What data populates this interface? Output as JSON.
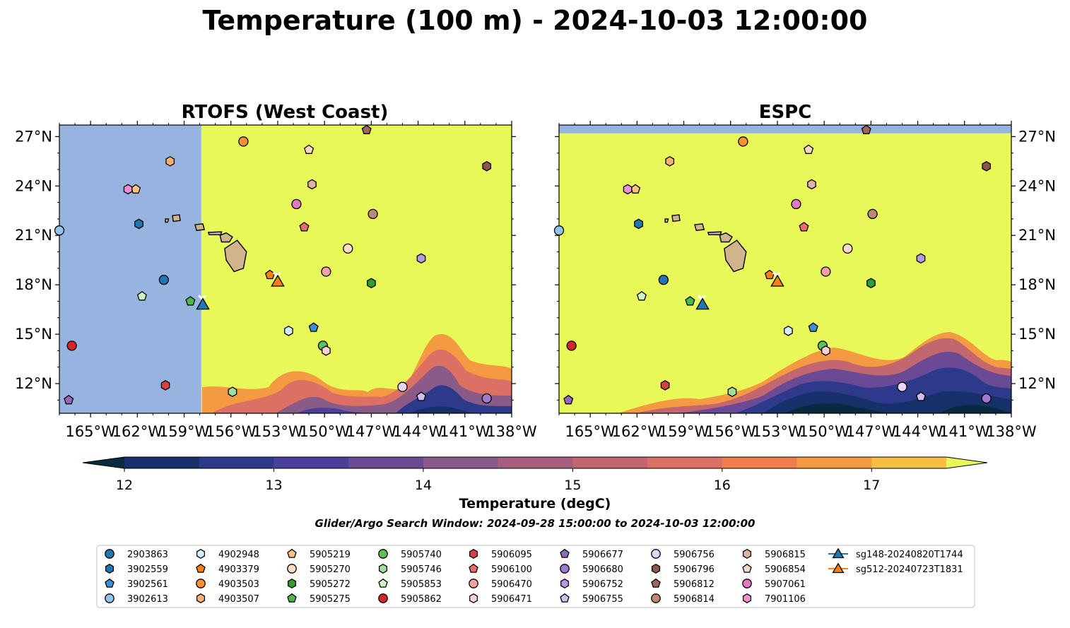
{
  "title": "Temperature (100 m) - 2024-10-03 12:00:00",
  "colorbar": {
    "label": "Temperature (degC)",
    "ticks": [
      "12",
      "13",
      "14",
      "15",
      "16",
      "17"
    ],
    "colors": [
      "#082a3e",
      "#16306a",
      "#2d3a8c",
      "#4a3f9a",
      "#6a4a94",
      "#8a5a88",
      "#a65e7c",
      "#c26670",
      "#dc7064",
      "#f07e4a",
      "#f49a42",
      "#f4bf42",
      "#e7f858"
    ]
  },
  "search_window": "Glider/Argo Search Window: 2024-09-28 15:00:00 to 2024-10-03 12:00:00",
  "chart_data": [
    {
      "type": "map",
      "title": "RTOFS (West Coast)",
      "xlim": [
        -167,
        -138
      ],
      "ylim": [
        10.2,
        27.7
      ],
      "x_ticks": [
        "165°W",
        "162°W",
        "159°W",
        "156°W",
        "153°W",
        "150°W",
        "147°W",
        "144°W",
        "141°W",
        "138°W"
      ],
      "y_ticks": [
        "27°N",
        "24°N",
        "21°N",
        "18°N",
        "15°N",
        "12°N"
      ],
      "no_data_west_of_lon": -157.9,
      "field_note": "domain outside model bounds shown in light blue; warm water (>17.5 degC) dominates"
    },
    {
      "type": "map",
      "title": "ESPC",
      "xlim": [
        -167,
        -138
      ],
      "ylim": [
        10.2,
        27.7
      ],
      "x_ticks": [
        "165°W",
        "162°W",
        "159°W",
        "156°W",
        "153°W",
        "150°W",
        "147°W",
        "144°W",
        "141°W",
        "138°W"
      ],
      "y_ticks": [
        "27°N",
        "24°N",
        "21°N",
        "18°N",
        "15°N",
        "12°N"
      ],
      "no_data_north_of_lat": 27.2,
      "field_note": "cooler water (12–15 degC) along the southern edge"
    }
  ],
  "platforms": [
    {
      "id": "2903863",
      "lon": -160.3,
      "lat": 18.3,
      "marker": "circle",
      "color": "#1f77b4"
    },
    {
      "id": "3902559",
      "lon": -161.9,
      "lat": 21.7,
      "marker": "hexagon",
      "color": "#1f77b4"
    },
    {
      "id": "3902561",
      "lon": -150.7,
      "lat": 15.4,
      "marker": "pentagon",
      "color": "#3c8fd4"
    },
    {
      "id": "3902613",
      "lon": -167.0,
      "lat": 21.3,
      "marker": "circle",
      "color": "#8fc4ec"
    },
    {
      "id": "4902948",
      "lon": -152.3,
      "lat": 15.2,
      "marker": "hexagon",
      "color": "#d4ecfb"
    },
    {
      "id": "4903379",
      "lon": -153.5,
      "lat": 18.6,
      "marker": "pentagon",
      "color": "#ff7f0e"
    },
    {
      "id": "4903503",
      "lon": -155.2,
      "lat": 26.7,
      "marker": "circle",
      "color": "#ff9030"
    },
    {
      "id": "4903507",
      "lon": -159.9,
      "lat": 25.5,
      "marker": "hexagon",
      "color": "#ffb070"
    },
    {
      "id": "5905219",
      "lon": -162.1,
      "lat": 23.8,
      "marker": "pentagon",
      "color": "#ffc27d"
    },
    {
      "id": "5905270",
      "lon": -148.5,
      "lat": 20.2,
      "marker": "circle",
      "color": "#ffdcc0"
    },
    {
      "id": "5905272",
      "lon": -147.0,
      "lat": 18.1,
      "marker": "hexagon",
      "color": "#2ca02c"
    },
    {
      "id": "5905275",
      "lon": -158.6,
      "lat": 17.0,
      "marker": "pentagon",
      "color": "#4ab84a"
    },
    {
      "id": "5905740",
      "lon": -150.1,
      "lat": 14.3,
      "marker": "circle",
      "color": "#5cc05c"
    },
    {
      "id": "5905746",
      "lon": -155.9,
      "lat": 11.5,
      "marker": "hexagon",
      "color": "#9ee09e"
    },
    {
      "id": "5905853",
      "lon": -161.7,
      "lat": 17.3,
      "marker": "pentagon",
      "color": "#ccf7bf"
    },
    {
      "id": "5905862",
      "lon": -166.2,
      "lat": 14.3,
      "marker": "circle",
      "color": "#d62728"
    },
    {
      "id": "5906095",
      "lon": -160.2,
      "lat": 11.9,
      "marker": "hexagon",
      "color": "#d94040"
    },
    {
      "id": "5906100",
      "lon": -151.3,
      "lat": 21.5,
      "marker": "pentagon",
      "color": "#ec6a68"
    },
    {
      "id": "5906470",
      "lon": -149.9,
      "lat": 18.8,
      "marker": "circle",
      "color": "#f4a2a0"
    },
    {
      "id": "5906471",
      "lon": -149.9,
      "lat": 14.0,
      "marker": "hexagon",
      "color": "#fbd2d0"
    },
    {
      "id": "5906677",
      "lon": -166.4,
      "lat": 11.0,
      "marker": "pentagon",
      "color": "#9467bd"
    },
    {
      "id": "5906680",
      "lon": -139.6,
      "lat": 11.1,
      "marker": "circle",
      "color": "#a07ad0"
    },
    {
      "id": "5906752",
      "lon": -143.8,
      "lat": 19.6,
      "marker": "hexagon",
      "color": "#b896e0"
    },
    {
      "id": "5906755",
      "lon": -143.8,
      "lat": 11.2,
      "marker": "pentagon",
      "color": "#d2bcf0"
    },
    {
      "id": "5906756",
      "lon": -145.0,
      "lat": 11.8,
      "marker": "circle",
      "color": "#e6d4fb"
    },
    {
      "id": "5906796",
      "lon": -139.6,
      "lat": 25.2,
      "marker": "hexagon",
      "color": "#8c564b"
    },
    {
      "id": "5906812",
      "lon": -147.3,
      "lat": 27.4,
      "marker": "pentagon",
      "color": "#a06858"
    },
    {
      "id": "5906814",
      "lon": -146.9,
      "lat": 22.3,
      "marker": "circle",
      "color": "#c0876f"
    },
    {
      "id": "5906815",
      "lon": -150.8,
      "lat": 24.1,
      "marker": "hexagon",
      "color": "#e0b29e"
    },
    {
      "id": "5906854",
      "lon": -151.0,
      "lat": 26.2,
      "marker": "pentagon",
      "color": "#fbd6c4"
    },
    {
      "id": "5907061",
      "lon": -151.8,
      "lat": 22.9,
      "marker": "circle",
      "color": "#e377c2"
    },
    {
      "id": "7901106",
      "lon": -162.6,
      "lat": 23.8,
      "marker": "hexagon",
      "color": "#ee8fd0"
    },
    {
      "id": "sg148-20240820T1744",
      "lon": -157.8,
      "lat": 16.8,
      "marker": "triangle",
      "color": "#1f77b4",
      "track": true
    },
    {
      "id": "sg512-20240723T1831",
      "lon": -153.0,
      "lat": 18.2,
      "marker": "triangle",
      "color": "#ff7f0e",
      "track": true
    }
  ]
}
